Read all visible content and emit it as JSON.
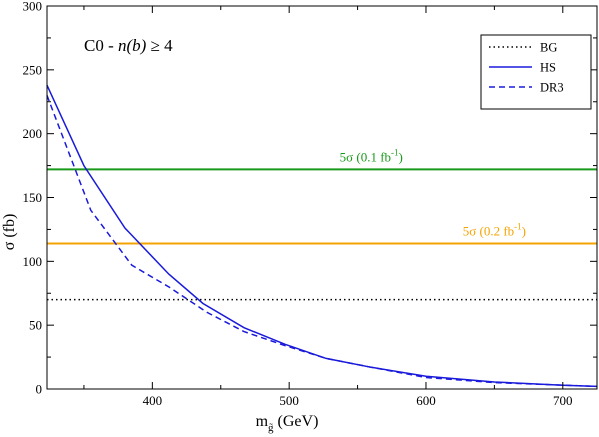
{
  "chart_data": {
    "type": "line",
    "title_prefix": "C0 - ",
    "title_italic": "n(b)",
    "title_suffix": " ≥ 4",
    "xlabel_main": "m",
    "xlabel_sub": "g̃",
    "xlabel_unit": " (GeV)",
    "ylabel": "σ (fb)",
    "xlim": [
      323,
      725
    ],
    "ylim": [
      0,
      300
    ],
    "xticks": [
      400,
      500,
      600,
      700
    ],
    "yticks": [
      0,
      50,
      100,
      150,
      200,
      250,
      300
    ],
    "legend_position": "top-right",
    "series": [
      {
        "name": "BG",
        "style": "dotted",
        "color": "#000000",
        "x": [
          323,
          725
        ],
        "y": [
          70,
          70
        ]
      },
      {
        "name": "HS",
        "style": "solid",
        "color": "#1a1adb",
        "x": [
          323,
          350,
          380,
          412,
          437,
          467,
          497,
          527,
          560,
          600,
          650,
          700,
          725
        ],
        "y": [
          238,
          175,
          126,
          90,
          67,
          48,
          35,
          24,
          17,
          10,
          5.5,
          3,
          2
        ]
      },
      {
        "name": "DR3",
        "style": "dashed",
        "color": "#1a1adb",
        "x": [
          323,
          355,
          385,
          412,
          440,
          467,
          497,
          527,
          560,
          600,
          650,
          700,
          725
        ],
        "y": [
          230,
          140,
          97,
          80,
          60,
          45,
          34,
          24,
          17,
          9,
          5,
          3,
          2
        ]
      }
    ],
    "hlines": [
      {
        "name": "5σ-0.1",
        "y": 172,
        "color": "#1a9a1a",
        "label_main": "5σ (0.1 fb",
        "label_sup": "-1",
        "label_close": ")",
        "label_x": 560
      },
      {
        "name": "5σ-0.2",
        "y": 114,
        "color": "#f5a300",
        "label_main": "5σ (0.2 fb",
        "label_sup": "-1",
        "label_close": ")",
        "label_x": 650
      }
    ]
  }
}
